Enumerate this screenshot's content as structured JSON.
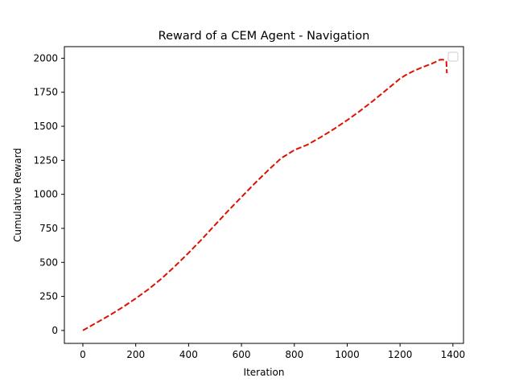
{
  "chart_data": {
    "type": "line",
    "title": "Reward of a CEM Agent - Navigation",
    "xlabel": "Iteration",
    "ylabel": "Cumulative Reward",
    "xlim": [
      -70,
      1440
    ],
    "ylim": [
      -95,
      2085
    ],
    "xticks": [
      0,
      200,
      400,
      600,
      800,
      1000,
      1200,
      1400
    ],
    "yticks": [
      0,
      250,
      500,
      750,
      1000,
      1250,
      1500,
      1750,
      2000
    ],
    "grid": false,
    "legend": {
      "placement": "top-right",
      "entries": []
    },
    "series": [
      {
        "color": "#dd1100",
        "linestyle": "dashed",
        "x": [
          0,
          50,
          100,
          150,
          200,
          250,
          300,
          350,
          400,
          450,
          500,
          550,
          600,
          650,
          700,
          750,
          800,
          850,
          900,
          950,
          1000,
          1050,
          1100,
          1150,
          1200,
          1220,
          1250,
          1280,
          1300,
          1320,
          1340,
          1350,
          1360,
          1370,
          1375,
          1376,
          1377
        ],
        "y": [
          0,
          55,
          110,
          170,
          235,
          305,
          385,
          475,
          570,
          670,
          775,
          880,
          980,
          1080,
          1175,
          1265,
          1325,
          1365,
          1420,
          1480,
          1545,
          1615,
          1690,
          1770,
          1850,
          1875,
          1905,
          1930,
          1945,
          1960,
          1978,
          1988,
          1990,
          1985,
          1975,
          1940,
          1890
        ]
      }
    ]
  }
}
